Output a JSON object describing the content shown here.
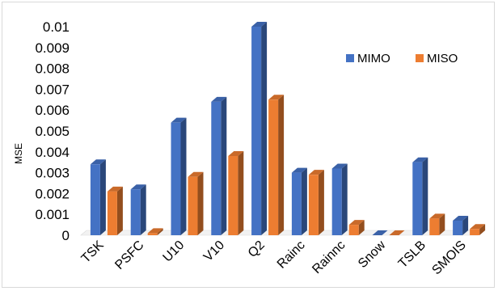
{
  "chart_data": {
    "type": "bar",
    "title": "",
    "xlabel": "",
    "ylabel": "MSE",
    "ylim": [
      0,
      0.01
    ],
    "yticks": [
      "0",
      "0.001",
      "0.002",
      "0.003",
      "0.004",
      "0.005",
      "0.006",
      "0.007",
      "0.008",
      "0.009",
      "0.01"
    ],
    "categories": [
      "TSK",
      "PSFC",
      "U10",
      "V10",
      "Q2",
      "Rainc",
      "Rainnc",
      "Snow",
      "TSLB",
      "SMOIS"
    ],
    "series": [
      {
        "name": "MIMO",
        "color": "#4472c4",
        "values": [
          0.0034,
          0.0022,
          0.0054,
          0.0064,
          0.01,
          0.003,
          0.0032,
          0.0,
          0.0035,
          0.0007
        ]
      },
      {
        "name": "MISO",
        "color": "#ed7d31",
        "values": [
          0.0021,
          0.0001,
          0.0028,
          0.0038,
          0.0065,
          0.0029,
          0.0005,
          0.0,
          0.0008,
          0.0003
        ]
      }
    ],
    "grid": false,
    "legend_position": "top-right",
    "style": "3d-bar"
  }
}
